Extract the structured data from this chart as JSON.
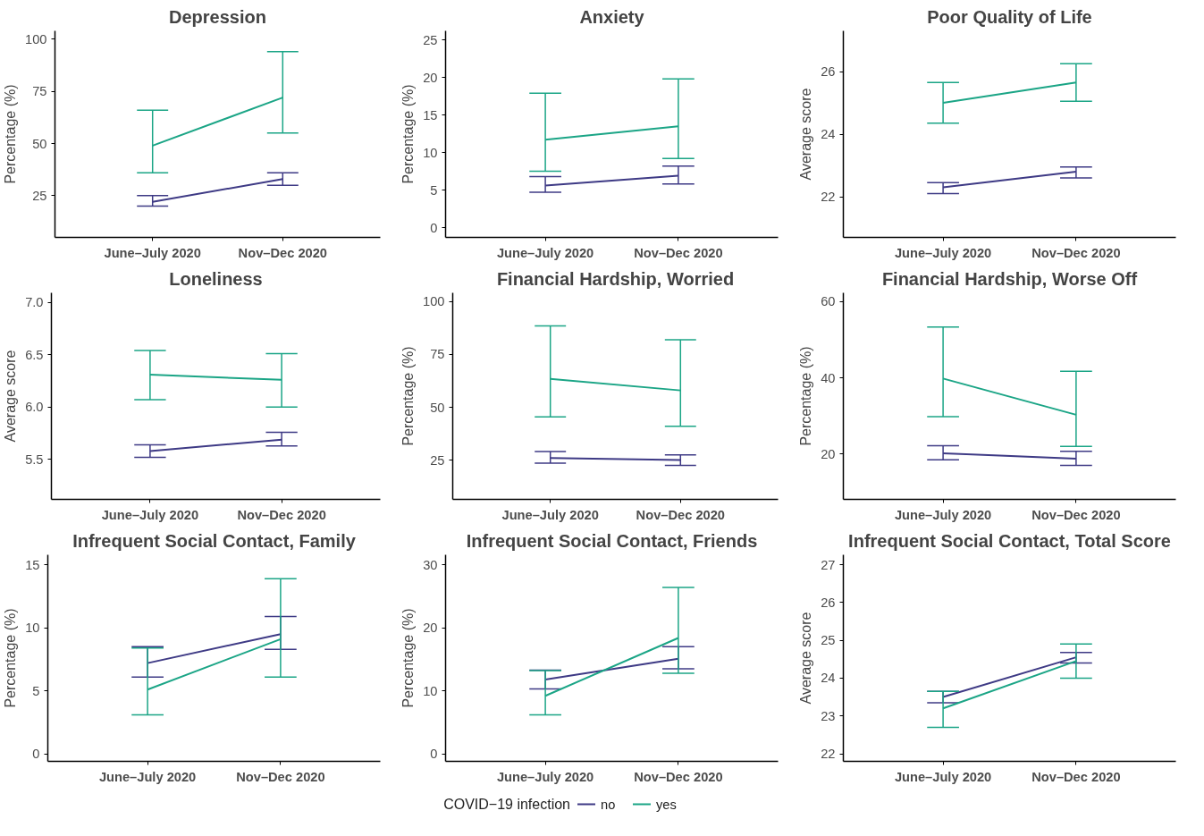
{
  "chart_data": [
    {
      "type": "line",
      "title": "Depression",
      "ylabel": "Percentage (%)",
      "categories": [
        "June–July 2020",
        "Nov–Dec 2020"
      ],
      "ylim": [
        5,
        104
      ],
      "yticks": [
        25,
        50,
        75,
        100
      ],
      "grid": false,
      "marker": "none",
      "line_style": "solid",
      "series": [
        {
          "color": "#3e3a85",
          "values": [
            22,
            33
          ],
          "errors": [
            [
              20,
              25
            ],
            [
              30,
              36
            ]
          ]
        },
        {
          "color": "#1ba586",
          "values": [
            49,
            72
          ],
          "errors": [
            [
              36,
              66
            ],
            [
              55,
              94
            ]
          ]
        }
      ]
    },
    {
      "type": "line",
      "title": "Anxiety",
      "ylabel": "Percentage (%)",
      "categories": [
        "June–July 2020",
        "Nov–Dec 2020"
      ],
      "ylim": [
        -1.3,
        26.2
      ],
      "yticks": [
        0,
        5,
        10,
        15,
        20,
        25
      ],
      "grid": false,
      "marker": "none",
      "line_style": "solid",
      "series": [
        {
          "color": "#3e3a85",
          "values": [
            5.6,
            6.9
          ],
          "errors": [
            [
              4.7,
              6.8
            ],
            [
              5.8,
              8.2
            ]
          ]
        },
        {
          "color": "#1ba586",
          "values": [
            11.7,
            13.5
          ],
          "errors": [
            [
              7.5,
              17.9
            ],
            [
              9.2,
              19.8
            ]
          ]
        }
      ]
    },
    {
      "type": "line",
      "title": "Poor Quality of Life",
      "ylabel": "Average score",
      "categories": [
        "June–July 2020",
        "Nov–Dec 2020"
      ],
      "ylim": [
        20.7,
        27.3
      ],
      "yticks": [
        22,
        24,
        26
      ],
      "grid": false,
      "marker": "none",
      "line_style": "solid",
      "series": [
        {
          "color": "#3e3a85",
          "values": [
            22.3,
            22.8
          ],
          "errors": [
            [
              22.1,
              22.45
            ],
            [
              22.6,
              22.95
            ]
          ]
        },
        {
          "color": "#1ba586",
          "values": [
            25.0,
            25.65
          ],
          "errors": [
            [
              24.35,
              25.65
            ],
            [
              25.05,
              26.25
            ]
          ]
        }
      ]
    },
    {
      "type": "line",
      "title": "Loneliness",
      "ylabel": "Average score",
      "categories": [
        "June–July 2020",
        "Nov–Dec 2020"
      ],
      "ylim": [
        5.12,
        7.09
      ],
      "yticks": [
        {
          "value": 5.5,
          "label": "5.5"
        },
        {
          "value": 6,
          "label": "6.0"
        },
        {
          "value": 6.5,
          "label": "6.5"
        },
        {
          "value": 7,
          "label": "7.0"
        }
      ],
      "grid": false,
      "marker": "none",
      "line_style": "solid",
      "series": [
        {
          "color": "#3e3a85",
          "values": [
            5.58,
            5.69
          ],
          "errors": [
            [
              5.52,
              5.64
            ],
            [
              5.63,
              5.76
            ]
          ]
        },
        {
          "color": "#1ba586",
          "values": [
            6.31,
            6.26
          ],
          "errors": [
            [
              6.07,
              6.54
            ],
            [
              6.0,
              6.51
            ]
          ]
        }
      ]
    },
    {
      "type": "line",
      "title": "Financial Hardship, Worried",
      "ylabel": "Percentage (%)",
      "categories": [
        "June–July 2020",
        "Nov–Dec 2020"
      ],
      "ylim": [
        6.4,
        104.2
      ],
      "yticks": [
        25,
        50,
        75,
        100
      ],
      "grid": false,
      "marker": "none",
      "line_style": "solid",
      "series": [
        {
          "color": "#3e3a85",
          "values": [
            26,
            25
          ],
          "errors": [
            [
              23.5,
              29
            ],
            [
              22.5,
              27.5
            ]
          ]
        },
        {
          "color": "#1ba586",
          "values": [
            63.5,
            58
          ],
          "errors": [
            [
              45.5,
              88.5
            ],
            [
              41,
              82
            ]
          ]
        }
      ]
    },
    {
      "type": "line",
      "title": "Financial Hardship, Worse Off",
      "ylabel": "Percentage (%)",
      "categories": [
        "June–July 2020",
        "Nov–Dec 2020"
      ],
      "ylim": [
        8.1,
        62.3
      ],
      "yticks": [
        20,
        40,
        60
      ],
      "grid": false,
      "marker": "none",
      "line_style": "solid",
      "series": [
        {
          "color": "#3e3a85",
          "values": [
            20.2,
            18.8
          ],
          "errors": [
            [
              18.5,
              22.2
            ],
            [
              17,
              20.7
            ]
          ]
        },
        {
          "color": "#1ba586",
          "values": [
            39.8,
            30.3
          ],
          "errors": [
            [
              29.8,
              53.3
            ],
            [
              22,
              41.7
            ]
          ]
        }
      ]
    },
    {
      "type": "line",
      "title": "Infrequent Social Contact, Family",
      "ylabel": "Percentage (%)",
      "categories": [
        "June–July 2020",
        "Nov–Dec 2020"
      ],
      "ylim": [
        -0.6,
        15.8
      ],
      "yticks": [
        0,
        5,
        10,
        15
      ],
      "grid": false,
      "marker": "none",
      "line_style": "solid",
      "series": [
        {
          "color": "#3e3a85",
          "values": [
            7.2,
            9.5
          ],
          "errors": [
            [
              6.1,
              8.5
            ],
            [
              8.3,
              10.9
            ]
          ]
        },
        {
          "color": "#1ba586",
          "values": [
            5.1,
            9.1
          ],
          "errors": [
            [
              3.1,
              8.4
            ],
            [
              6.1,
              13.9
            ]
          ]
        }
      ]
    },
    {
      "type": "line",
      "title": "Infrequent Social Contact, Friends",
      "ylabel": "Percentage (%)",
      "categories": [
        "June–July 2020",
        "Nov–Dec 2020"
      ],
      "ylim": [
        -1.2,
        31.6
      ],
      "yticks": [
        0,
        10,
        20,
        30
      ],
      "grid": false,
      "marker": "none",
      "line_style": "solid",
      "legend": "bottom",
      "legend_title": "COVID−19 infection",
      "series": [
        {
          "name": "no",
          "color": "#3e3a85",
          "values": [
            11.8,
            15.1
          ],
          "errors": [
            [
              10.3,
              13.3
            ],
            [
              13.5,
              17.0
            ]
          ]
        },
        {
          "name": "yes",
          "color": "#1ba586",
          "values": [
            9.2,
            18.4
          ],
          "errors": [
            [
              6.2,
              13.2
            ],
            [
              12.8,
              26.4
            ]
          ]
        }
      ]
    },
    {
      "type": "line",
      "title": "Infrequent Social Contact, Total Score",
      "ylabel": "Average score",
      "categories": [
        "June–July 2020",
        "Nov–Dec 2020"
      ],
      "ylim": [
        21.8,
        27.26
      ],
      "yticks": [
        22,
        23,
        24,
        25,
        26,
        27
      ],
      "grid": false,
      "marker": "none",
      "line_style": "solid",
      "series": [
        {
          "color": "#3e3a85",
          "values": [
            23.5,
            24.55
          ],
          "errors": [
            [
              23.35,
              23.65
            ],
            [
              24.4,
              24.68
            ]
          ]
        },
        {
          "color": "#1ba586",
          "values": [
            23.2,
            24.45
          ],
          "errors": [
            [
              22.7,
              23.65
            ],
            [
              24.0,
              24.9
            ]
          ]
        }
      ]
    }
  ]
}
